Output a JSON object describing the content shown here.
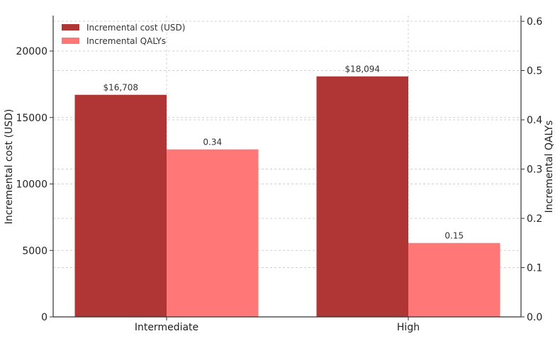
{
  "chart_data": {
    "type": "bar",
    "categories": [
      "Intermediate",
      "High"
    ],
    "series": [
      {
        "name": "Incremental cost (USD)",
        "axis": "left",
        "values": [
          16708,
          18094
        ],
        "labels": [
          "$16,708",
          "$18,094"
        ],
        "color": "#b03535"
      },
      {
        "name": "Incremental QALYs",
        "axis": "right",
        "values": [
          0.34,
          0.15
        ],
        "labels": [
          "0.34",
          "0.15"
        ],
        "color": "#ff7777"
      }
    ],
    "ylabel": "Incremental cost (USD)",
    "y2label": "Incremental QALYs",
    "ylim": [
      0,
      22667
    ],
    "y2lim": [
      0,
      0.6115
    ],
    "yticks": [
      "0",
      "5000",
      "10000",
      "15000",
      "20000"
    ],
    "ytick_values": [
      0,
      5000,
      10000,
      15000,
      20000
    ],
    "y2ticks": [
      "0.0",
      "0.1",
      "0.2",
      "0.3",
      "0.4",
      "0.5",
      "0.6"
    ],
    "y2tick_values": [
      0,
      0.1,
      0.2,
      0.3,
      0.4,
      0.5,
      0.6
    ],
    "grid": true,
    "legend": "top-left"
  }
}
